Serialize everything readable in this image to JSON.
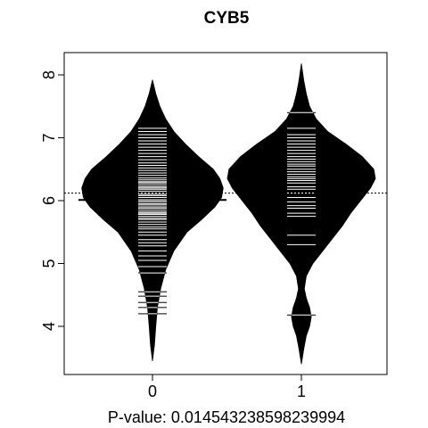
{
  "chart_data": {
    "type": "beanplot",
    "title": "CYB5",
    "xlabel": "P-value: 0.014543238598239994",
    "ylabel": "",
    "categories": [
      "0",
      "1"
    ],
    "yticks": [
      4,
      5,
      6,
      7,
      8
    ],
    "ylim": [
      3.3,
      8.3
    ],
    "overall_mean": 6.12,
    "groups": [
      {
        "category": "0",
        "mean": 6.01,
        "density": [
          [
            3.45,
            0.0
          ],
          [
            3.7,
            0.012
          ],
          [
            4.0,
            0.02
          ],
          [
            4.3,
            0.03
          ],
          [
            4.6,
            0.05
          ],
          [
            4.9,
            0.08
          ],
          [
            5.2,
            0.13
          ],
          [
            5.5,
            0.21
          ],
          [
            5.7,
            0.3
          ],
          [
            5.9,
            0.38
          ],
          [
            6.05,
            0.42
          ],
          [
            6.2,
            0.43
          ],
          [
            6.35,
            0.41
          ],
          [
            6.5,
            0.37
          ],
          [
            6.7,
            0.28
          ],
          [
            6.9,
            0.2
          ],
          [
            7.1,
            0.13
          ],
          [
            7.3,
            0.08
          ],
          [
            7.5,
            0.045
          ],
          [
            7.7,
            0.02
          ],
          [
            7.92,
            0.0
          ]
        ],
        "observations": [
          4.2,
          4.3,
          4.38,
          4.48,
          4.55,
          4.85,
          4.95,
          5.05,
          5.12,
          5.2,
          5.28,
          5.33,
          5.38,
          5.45,
          5.5,
          5.55,
          5.58,
          5.62,
          5.66,
          5.7,
          5.72,
          5.75,
          5.78,
          5.8,
          5.82,
          5.85,
          5.88,
          5.9,
          5.93,
          5.95,
          5.98,
          6.0,
          6.02,
          6.05,
          6.08,
          6.1,
          6.12,
          6.15,
          6.18,
          6.2,
          6.22,
          6.25,
          6.28,
          6.3,
          6.33,
          6.36,
          6.4,
          6.44,
          6.48,
          6.52,
          6.56,
          6.6,
          6.65,
          6.7,
          6.75,
          6.8,
          6.85,
          6.9,
          6.95,
          7.0,
          7.05,
          7.1,
          7.15,
          5.8,
          6.3
        ]
      },
      {
        "category": "1",
        "mean": 6.35,
        "density": [
          [
            3.4,
            0.0
          ],
          [
            3.65,
            0.015
          ],
          [
            3.85,
            0.03
          ],
          [
            4.0,
            0.05
          ],
          [
            4.15,
            0.06
          ],
          [
            4.3,
            0.05
          ],
          [
            4.45,
            0.03
          ],
          [
            4.6,
            0.018
          ],
          [
            4.8,
            0.03
          ],
          [
            5.0,
            0.07
          ],
          [
            5.2,
            0.13
          ],
          [
            5.4,
            0.19
          ],
          [
            5.6,
            0.25
          ],
          [
            5.8,
            0.3
          ],
          [
            6.0,
            0.36
          ],
          [
            6.2,
            0.42
          ],
          [
            6.35,
            0.45
          ],
          [
            6.5,
            0.44
          ],
          [
            6.7,
            0.37
          ],
          [
            6.9,
            0.27
          ],
          [
            7.1,
            0.16
          ],
          [
            7.3,
            0.09
          ],
          [
            7.5,
            0.05
          ],
          [
            7.7,
            0.03
          ],
          [
            7.9,
            0.015
          ],
          [
            8.18,
            0.0
          ]
        ],
        "observations": [
          4.18,
          5.3,
          5.45,
          5.75,
          5.8,
          5.88,
          5.92,
          5.98,
          6.05,
          6.12,
          6.18,
          6.22,
          6.28,
          6.32,
          6.38,
          6.42,
          6.46,
          6.5,
          6.55,
          6.58,
          6.62,
          6.66,
          6.7,
          6.75,
          6.8,
          6.85,
          6.9,
          6.95,
          7.0,
          7.05,
          7.15,
          7.4
        ]
      }
    ]
  }
}
